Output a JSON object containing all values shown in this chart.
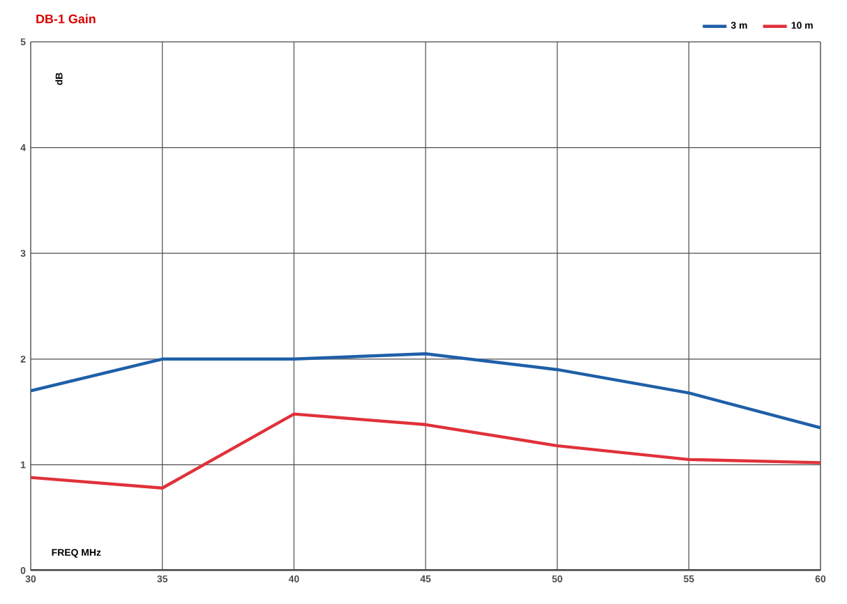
{
  "chart_data": {
    "type": "line",
    "title": "DB-1 Gain",
    "xlabel": "FREQ  MHz",
    "ylabel": "dB",
    "x": [
      30,
      35,
      40,
      45,
      50,
      55,
      60
    ],
    "series": [
      {
        "name": "3 m",
        "color": "#1f5fa8",
        "values": [
          1.7,
          2.0,
          2.0,
          2.05,
          1.9,
          1.68,
          1.35
        ]
      },
      {
        "name": "10 m",
        "color": "#e0313a",
        "values": [
          0.88,
          0.78,
          1.48,
          1.38,
          1.18,
          1.05,
          1.02
        ]
      }
    ],
    "xlim": [
      30,
      60
    ],
    "ylim": [
      0,
      5
    ],
    "xticks": [
      30,
      35,
      40,
      45,
      50,
      55,
      60
    ],
    "yticks": [
      0,
      1,
      2,
      3,
      4,
      5
    ],
    "grid": true,
    "legend": "top right",
    "marker": "none",
    "line_style": "solid"
  }
}
